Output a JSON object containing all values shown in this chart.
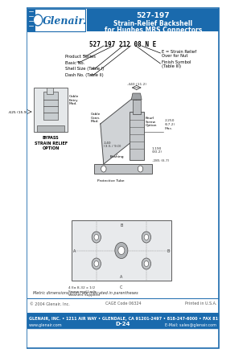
{
  "title_line1": "527-197",
  "title_line2": "Strain-Relief Backshell",
  "title_line3": "for Hughes MRS Connectors",
  "header_bg": "#1a6aad",
  "header_text_color": "#ffffff",
  "body_bg": "#ffffff",
  "border_color": "#1a6aad",
  "part_number_example": "527 197 212 08 N E",
  "footer_copy": "© 2004 Glenair, Inc.",
  "footer_cage": "CAGE Code 06324",
  "page_ref": "Printed in U.S.A.",
  "footer_line2_left": "GLENAIR, INC. • 1211 AIR WAY • GLENDALE, CA 91201-2497 • 818-247-6000 • FAX 818-500-9912",
  "footer_www": "www.glenair.com",
  "footer_center": "D-24",
  "footer_email": "E-Mail: sales@glenair.com",
  "strain_label": "STRAIN RELIEF\nOPTION"
}
